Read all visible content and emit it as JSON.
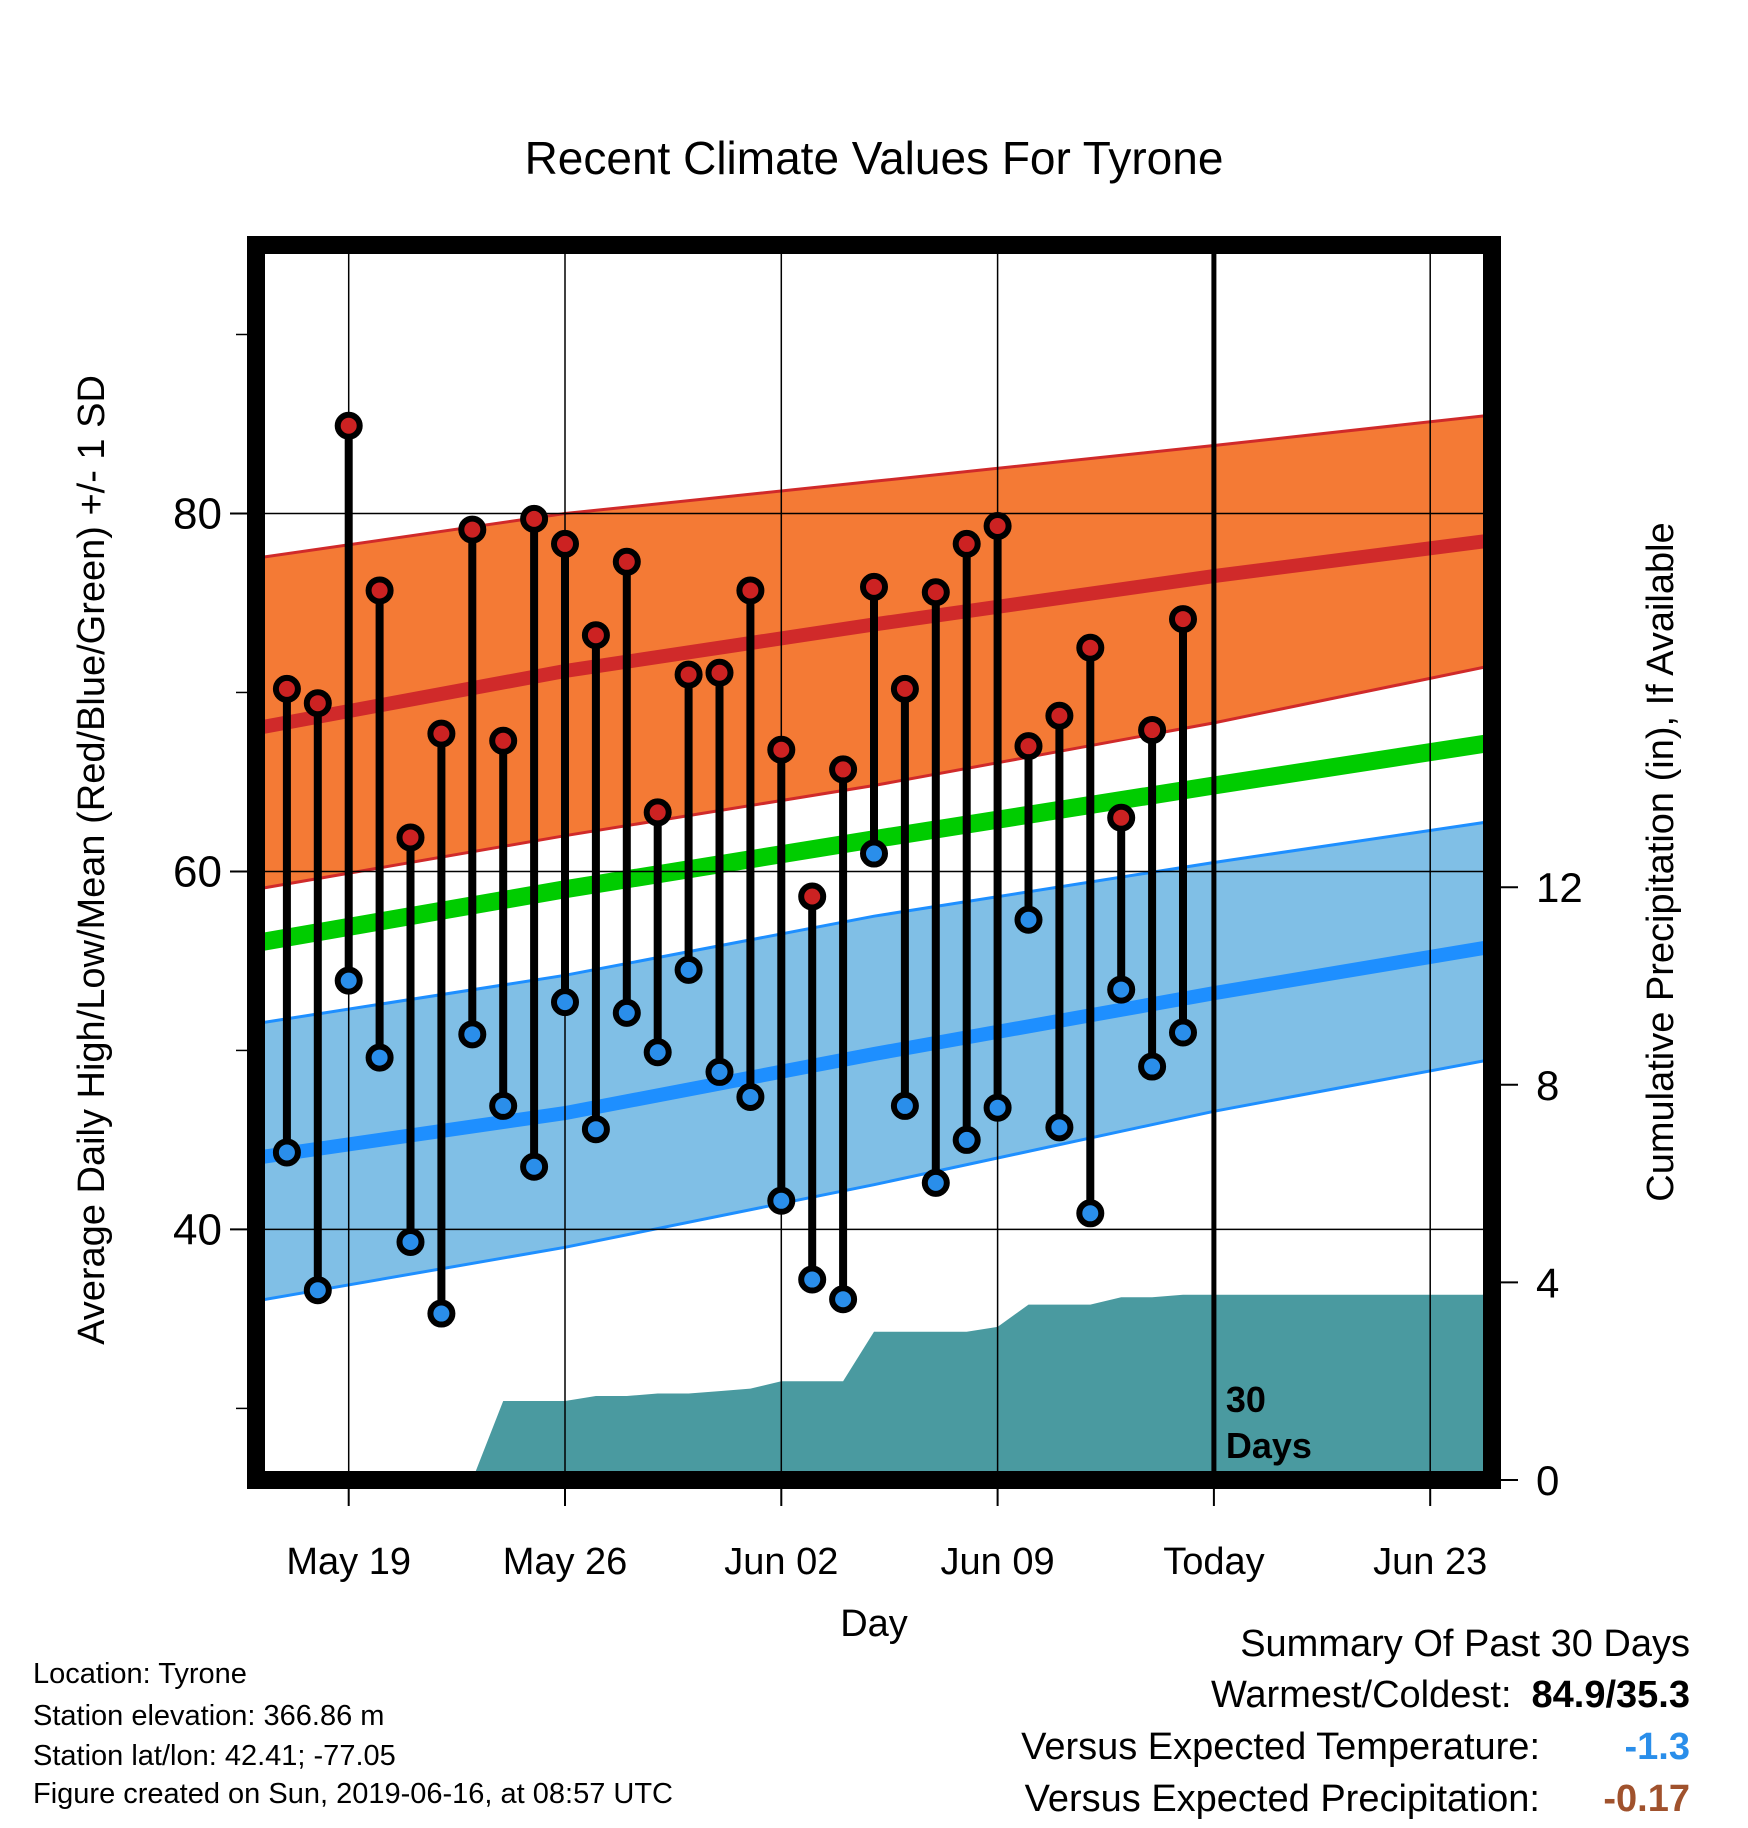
{
  "chart_data": {
    "type": "line",
    "title": "Recent Climate Values For Tyrone",
    "xlabel": "Day",
    "ylabel": "Average Daily High/Low/Mean (Red/Blue/Green) +/- 1 SD",
    "y2label": "Cumulative Precipitation (in), If Available",
    "x_ticks": [
      "May 19",
      "May 26",
      "Jun 02",
      "Jun 09",
      "Today",
      "Jun 23"
    ],
    "x_tick_dates": [
      "2019-05-19",
      "2019-05-26",
      "2019-06-02",
      "2019-06-09",
      "2019-06-16",
      "2019-06-23"
    ],
    "x_range": [
      "2019-05-16",
      "2019-06-25"
    ],
    "ylim": [
      26,
      95
    ],
    "y_ticks": [
      40,
      60,
      80
    ],
    "y2lim": [
      0,
      25
    ],
    "y2_ticks": [
      0,
      4,
      8,
      12
    ],
    "grid": true,
    "today_label": "30\nDays",
    "colors": {
      "high_band": "#f47a35",
      "high_line": "#d02a2a",
      "low_band": "#80bfe6",
      "low_line": "#1e8fff",
      "mean_line": "#00cc00",
      "precip": "#4a9aa0",
      "high_dot": "#cc2222",
      "low_dot": "#2a8eea"
    },
    "normals": {
      "dates": [
        "2019-05-16",
        "2019-05-26",
        "2019-06-05",
        "2019-06-16",
        "2019-06-25"
      ],
      "high_mean": [
        68.0,
        71.2,
        73.8,
        76.5,
        78.5
      ],
      "high_upper": [
        77.5,
        80.0,
        81.8,
        83.8,
        85.5
      ],
      "high_lower": [
        59.0,
        62.0,
        64.8,
        68.3,
        71.5
      ],
      "low_mean": [
        44.0,
        46.5,
        49.8,
        53.2,
        55.8
      ],
      "low_upper": [
        51.5,
        54.2,
        57.5,
        60.5,
        62.8
      ],
      "low_lower": [
        36.0,
        39.0,
        42.5,
        46.6,
        49.5
      ],
      "avg_mean": [
        56.0,
        59.0,
        61.8,
        64.8,
        67.2
      ]
    },
    "series": [
      {
        "name": "High",
        "dates": [
          "2019-05-17",
          "2019-05-18",
          "2019-05-19",
          "2019-05-20",
          "2019-05-21",
          "2019-05-22",
          "2019-05-23",
          "2019-05-24",
          "2019-05-25",
          "2019-05-26",
          "2019-05-27",
          "2019-05-28",
          "2019-05-29",
          "2019-05-30",
          "2019-05-31",
          "2019-06-01",
          "2019-06-02",
          "2019-06-03",
          "2019-06-04",
          "2019-06-05",
          "2019-06-06",
          "2019-06-07",
          "2019-06-08",
          "2019-06-09",
          "2019-06-10",
          "2019-06-11",
          "2019-06-12",
          "2019-06-13",
          "2019-06-14",
          "2019-06-15"
        ],
        "values": [
          70.2,
          69.4,
          84.9,
          75.7,
          61.9,
          67.7,
          79.1,
          67.3,
          79.7,
          78.3,
          73.2,
          77.3,
          63.3,
          71.0,
          71.1,
          75.7,
          66.8,
          58.6,
          65.7,
          75.9,
          70.2,
          75.6,
          78.3,
          79.3,
          67.0,
          68.7,
          72.5,
          63.0,
          67.9,
          74.1
        ]
      },
      {
        "name": "Low",
        "dates": [
          "2019-05-17",
          "2019-05-18",
          "2019-05-19",
          "2019-05-20",
          "2019-05-21",
          "2019-05-22",
          "2019-05-23",
          "2019-05-24",
          "2019-05-25",
          "2019-05-26",
          "2019-05-27",
          "2019-05-28",
          "2019-05-29",
          "2019-05-30",
          "2019-05-31",
          "2019-06-01",
          "2019-06-02",
          "2019-06-03",
          "2019-06-04",
          "2019-06-05",
          "2019-06-06",
          "2019-06-07",
          "2019-06-08",
          "2019-06-09",
          "2019-06-10",
          "2019-06-11",
          "2019-06-12",
          "2019-06-13",
          "2019-06-14",
          "2019-06-15"
        ],
        "values": [
          44.3,
          36.6,
          53.9,
          49.6,
          39.3,
          35.3,
          50.9,
          46.9,
          43.5,
          52.7,
          45.6,
          52.1,
          49.9,
          54.5,
          48.8,
          47.4,
          41.6,
          37.2,
          36.1,
          61.0,
          46.9,
          42.6,
          45.0,
          46.8,
          57.3,
          45.7,
          40.9,
          53.4,
          49.1,
          51.0
        ]
      },
      {
        "name": "Cumulative Precipitation",
        "dates": [
          "2019-05-23",
          "2019-05-24",
          "2019-05-25",
          "2019-05-26",
          "2019-05-27",
          "2019-05-28",
          "2019-05-29",
          "2019-05-30",
          "2019-05-31",
          "2019-06-01",
          "2019-06-02",
          "2019-06-03",
          "2019-06-04",
          "2019-06-05",
          "2019-06-06",
          "2019-06-07",
          "2019-06-08",
          "2019-06-09",
          "2019-06-10",
          "2019-06-11",
          "2019-06-12",
          "2019-06-13",
          "2019-06-14",
          "2019-06-15",
          "2019-06-25"
        ],
        "values": [
          0,
          1.6,
          1.6,
          1.6,
          1.7,
          1.7,
          1.75,
          1.75,
          1.8,
          1.85,
          2.0,
          2.0,
          2.0,
          3.0,
          3.0,
          3.0,
          3.0,
          3.1,
          3.55,
          3.55,
          3.55,
          3.7,
          3.7,
          3.75,
          3.75
        ]
      }
    ]
  },
  "info": {
    "location": "Location: Tyrone",
    "elevation": "Station elevation: 366.86 m",
    "latlon": "Station lat/lon: 42.41; -77.05",
    "created": "Figure created on Sun, 2019-06-16, at 08:57 UTC"
  },
  "summary": {
    "heading": "Summary Of Past 30 Days",
    "warmest_label": "Warmest/Coldest:",
    "warmest_value": "84.9/35.3",
    "temp_label": "Versus Expected Temperature:",
    "temp_value": "-1.3",
    "temp_color": "#2a8eea",
    "precip_label": "Versus Expected Precipitation:",
    "precip_value": "-0.17",
    "precip_color": "#a0522d"
  }
}
